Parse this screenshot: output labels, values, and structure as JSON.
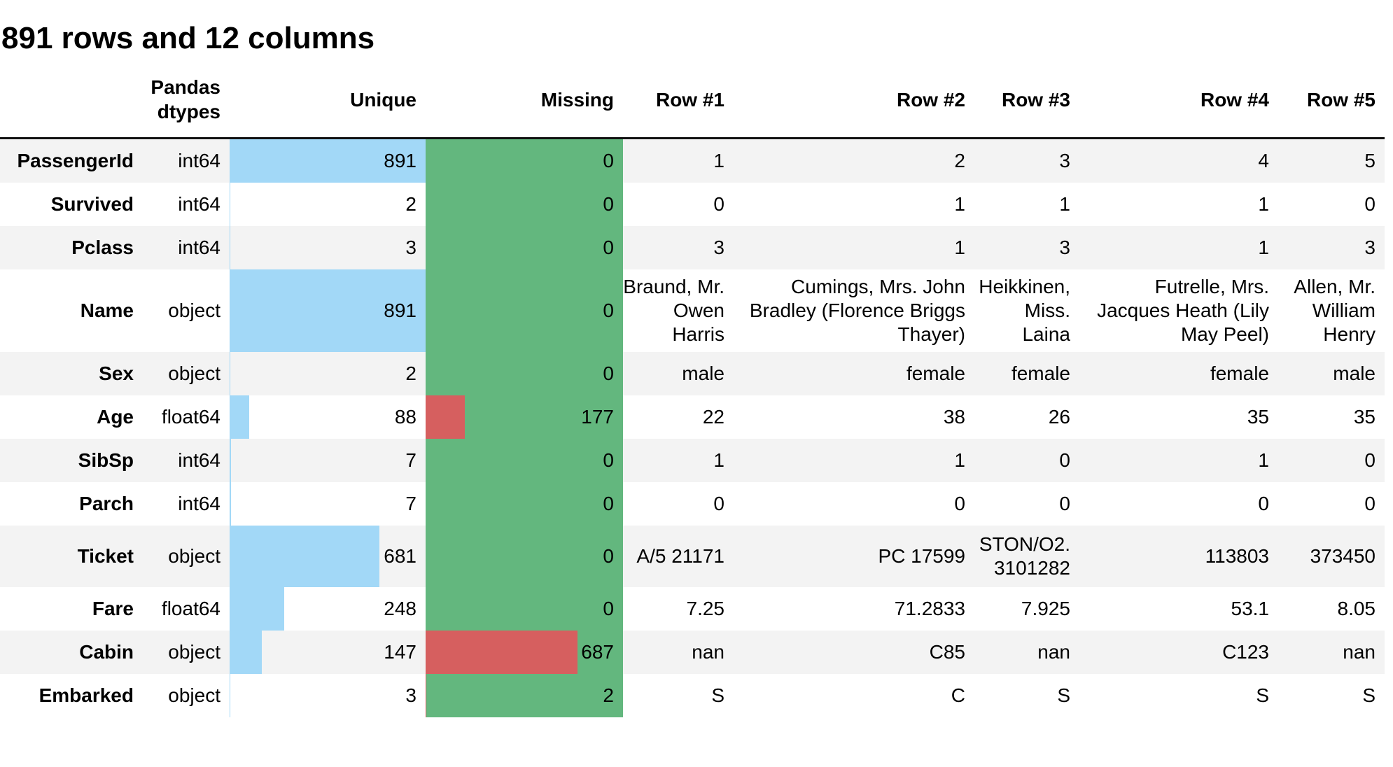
{
  "page": {
    "title": "891 rows and 12 columns"
  },
  "chart_data": {
    "type": "table",
    "title": "891 rows and 12 columns",
    "total_rows": 891,
    "total_columns": 12,
    "colors": {
      "unique_bar_blue": "#a2d8f7",
      "missing_bar_red": "#d65f5f",
      "missing_bg_green": "#63b77e",
      "row_stripe_gray": "#f3f3f3",
      "header_border": "#111111"
    },
    "columns": [
      {
        "key": "field",
        "label": ""
      },
      {
        "key": "dtype",
        "label": "Pandas dtypes"
      },
      {
        "key": "unique",
        "label": "Unique"
      },
      {
        "key": "missing",
        "label": "Missing"
      },
      {
        "key": "row1",
        "label": "Row #1"
      },
      {
        "key": "row2",
        "label": "Row #2"
      },
      {
        "key": "row3",
        "label": "Row #3"
      },
      {
        "key": "row4",
        "label": "Row #4"
      },
      {
        "key": "row5",
        "label": "Row #5"
      }
    ],
    "rows": [
      {
        "name": "PassengerId",
        "dtype": "int64",
        "unique": 891,
        "missing": 0,
        "values": [
          "1",
          "2",
          "3",
          "4",
          "5"
        ]
      },
      {
        "name": "Survived",
        "dtype": "int64",
        "unique": 2,
        "missing": 0,
        "values": [
          "0",
          "1",
          "1",
          "1",
          "0"
        ]
      },
      {
        "name": "Pclass",
        "dtype": "int64",
        "unique": 3,
        "missing": 0,
        "values": [
          "3",
          "1",
          "3",
          "1",
          "3"
        ]
      },
      {
        "name": "Name",
        "dtype": "object",
        "unique": 891,
        "missing": 0,
        "values": [
          "Braund, Mr. Owen Harris",
          "Cumings, Mrs. John Bradley (Florence Briggs Thayer)",
          "Heikkinen, Miss. Laina",
          "Futrelle, Mrs. Jacques Heath (Lily May Peel)",
          "Allen, Mr. William Henry"
        ]
      },
      {
        "name": "Sex",
        "dtype": "object",
        "unique": 2,
        "missing": 0,
        "values": [
          "male",
          "female",
          "female",
          "female",
          "male"
        ]
      },
      {
        "name": "Age",
        "dtype": "float64",
        "unique": 88,
        "missing": 177,
        "values": [
          "22",
          "38",
          "26",
          "35",
          "35"
        ]
      },
      {
        "name": "SibSp",
        "dtype": "int64",
        "unique": 7,
        "missing": 0,
        "values": [
          "1",
          "1",
          "0",
          "1",
          "0"
        ]
      },
      {
        "name": "Parch",
        "dtype": "int64",
        "unique": 7,
        "missing": 0,
        "values": [
          "0",
          "0",
          "0",
          "0",
          "0"
        ]
      },
      {
        "name": "Ticket",
        "dtype": "object",
        "unique": 681,
        "missing": 0,
        "values": [
          "A/5 21171",
          "PC 17599",
          "STON/O2. 3101282",
          "113803",
          "373450"
        ]
      },
      {
        "name": "Fare",
        "dtype": "float64",
        "unique": 248,
        "missing": 0,
        "values": [
          "7.25",
          "71.2833",
          "7.925",
          "53.1",
          "8.05"
        ]
      },
      {
        "name": "Cabin",
        "dtype": "object",
        "unique": 147,
        "missing": 687,
        "values": [
          "nan",
          "C85",
          "nan",
          "C123",
          "nan"
        ]
      },
      {
        "name": "Embarked",
        "dtype": "object",
        "unique": 3,
        "missing": 2,
        "values": [
          "S",
          "C",
          "S",
          "S",
          "S"
        ]
      }
    ]
  }
}
